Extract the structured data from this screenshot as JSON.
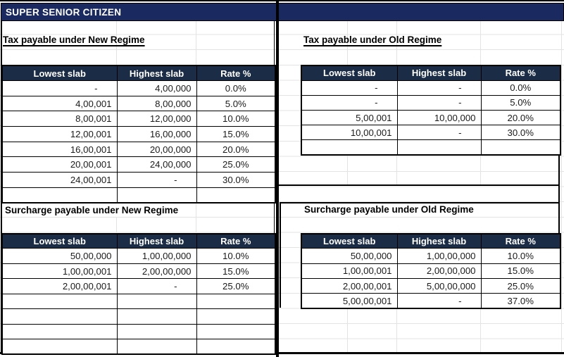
{
  "sheet_title": "SUPER SENIOR CITIZEN",
  "colors": {
    "title_bar_bg": "#1a2a60",
    "table_header_bg": "#1b2d46",
    "border": "#000000",
    "faint_grid": "#e3e3e3"
  },
  "sections": {
    "tax_new": {
      "title": "Tax payable under New Regime",
      "headers": [
        "Lowest slab",
        "Highest slab",
        "Rate %"
      ],
      "rows": [
        [
          "-",
          "4,00,000",
          "0.0%"
        ],
        [
          "4,00,001",
          "8,00,000",
          "5.0%"
        ],
        [
          "8,00,001",
          "12,00,000",
          "10.0%"
        ],
        [
          "12,00,001",
          "16,00,000",
          "15.0%"
        ],
        [
          "16,00,001",
          "20,00,000",
          "20.0%"
        ],
        [
          "20,00,001",
          "24,00,000",
          "25.0%"
        ],
        [
          "24,00,001",
          "-",
          "30.0%"
        ]
      ],
      "empty_rows": 1
    },
    "tax_old": {
      "title": "Tax payable under Old Regime",
      "headers": [
        "Lowest slab",
        "Highest slab",
        "Rate %"
      ],
      "rows": [
        [
          "-",
          "-",
          "0.0%"
        ],
        [
          "-",
          "-",
          "5.0%"
        ],
        [
          "5,00,001",
          "10,00,000",
          "20.0%"
        ],
        [
          "10,00,001",
          "-",
          "30.0%"
        ]
      ],
      "empty_rows": 1
    },
    "surcharge_new": {
      "title": "Surcharge payable under New Regime",
      "headers": [
        "Lowest slab",
        "Highest slab",
        "Rate %"
      ],
      "rows": [
        [
          "50,00,000",
          "1,00,00,000",
          "10.0%"
        ],
        [
          "1,00,00,001",
          "2,00,00,000",
          "15.0%"
        ],
        [
          "2,00,00,001",
          "-",
          "25.0%"
        ]
      ],
      "empty_rows": 4
    },
    "surcharge_old": {
      "title": "Surcharge payable under Old Regime",
      "headers": [
        "Lowest slab",
        "Highest slab",
        "Rate %"
      ],
      "rows": [
        [
          "50,00,000",
          "1,00,00,000",
          "10.0%"
        ],
        [
          "1,00,00,001",
          "2,00,00,000",
          "15.0%"
        ],
        [
          "2,00,00,001",
          "5,00,00,000",
          "25.0%"
        ],
        [
          "5,00,00,001",
          "-",
          "37.0%"
        ]
      ],
      "empty_rows": 0
    }
  }
}
